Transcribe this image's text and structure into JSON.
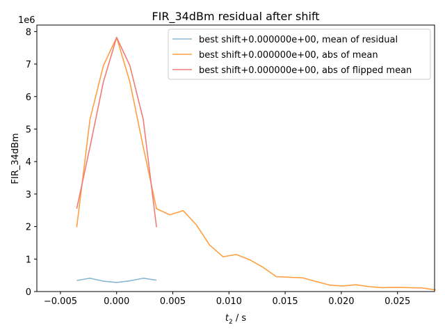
{
  "chart_data": {
    "type": "line",
    "title": "FIR_34dBm residual after shift",
    "xlabel_main": "t",
    "xlabel_sub": "2",
    "xlabel_rest": " / s",
    "ylabel": "FIR_34dBm",
    "y_offset_label": "1e6",
    "xlim": [
      -0.0071,
      0.0283
    ],
    "ylim": [
      0,
      8.2
    ],
    "x_ticks": [
      -0.005,
      0.0,
      0.005,
      0.01,
      0.015,
      0.02,
      0.025
    ],
    "x_tick_labels": [
      "−0.005",
      "0.000",
      "0.005",
      "0.010",
      "0.015",
      "0.020",
      "0.025"
    ],
    "y_ticks": [
      0,
      1,
      2,
      3,
      4,
      5,
      6,
      7,
      8
    ],
    "y_tick_labels": [
      "0",
      "1",
      "2",
      "3",
      "4",
      "5",
      "6",
      "7",
      "8"
    ],
    "legend_position": "top-right",
    "series": [
      {
        "name": "best shift+0.000000e+00, mean of residual",
        "color": "#8ab8d4",
        "x": [
          -0.00355,
          -0.00237,
          -0.00118,
          0.0,
          0.00118,
          0.00237,
          0.00355
        ],
        "y": [
          0.34,
          0.41,
          0.32,
          0.28,
          0.33,
          0.41,
          0.35
        ]
      },
      {
        "name": "best shift+0.000000e+00, abs of mean",
        "color": "#ff9f40",
        "x": [
          -0.00355,
          -0.00237,
          -0.00118,
          0.0,
          0.00118,
          0.00237,
          0.00355,
          0.00473,
          0.00592,
          0.0071,
          0.00828,
          0.00947,
          0.01065,
          0.01183,
          0.01302,
          0.0142,
          0.01538,
          0.01657,
          0.01775,
          0.01893,
          0.02012,
          0.0213,
          0.02248,
          0.02367,
          0.02485,
          0.02603,
          0.02722,
          0.0284
        ],
        "y": [
          1.98,
          5.3,
          6.95,
          7.82,
          6.45,
          4.45,
          2.55,
          2.36,
          2.49,
          2.05,
          1.43,
          1.07,
          1.14,
          0.98,
          0.75,
          0.46,
          0.44,
          0.42,
          0.31,
          0.2,
          0.17,
          0.21,
          0.15,
          0.12,
          0.13,
          0.12,
          0.11,
          0.05
        ]
      },
      {
        "name": "best shift+0.000000e+00, abs of flipped mean",
        "color": "#f07c78",
        "x": [
          -0.00355,
          -0.00237,
          -0.00118,
          0.0,
          0.00118,
          0.00237,
          0.00355
        ],
        "y": [
          2.55,
          4.45,
          6.45,
          7.82,
          6.95,
          5.3,
          1.98
        ]
      }
    ]
  }
}
